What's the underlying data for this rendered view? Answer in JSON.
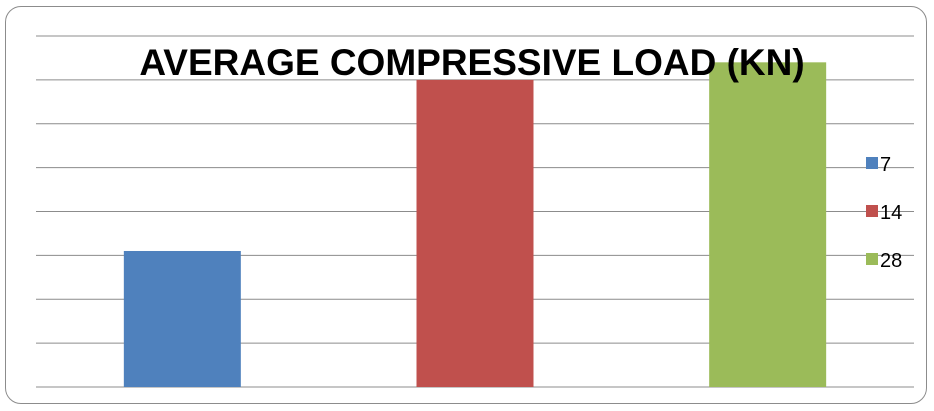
{
  "chart_data": {
    "type": "bar",
    "title": "AVERAGE COMPRESSIVE LOAD (KN)",
    "xlabel": "",
    "ylabel": "",
    "categories": [
      "7",
      "14",
      "28"
    ],
    "values": [
      3.1,
      7.0,
      7.4
    ],
    "ylim": [
      0,
      8
    ],
    "grid": true,
    "legend_position": "right",
    "series_colors": [
      "#4f81bd",
      "#c0504d",
      "#9bbb59"
    ]
  }
}
